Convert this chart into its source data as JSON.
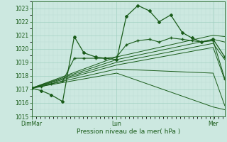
{
  "title": "",
  "xlabel": "Pression niveau de la mer( hPa )",
  "bg_color": "#cce8e0",
  "line_color": "#1a5c1a",
  "grid_major_color": "#99ccbb",
  "grid_minor_color": "#bbddd4",
  "ylim": [
    1015,
    1023.5
  ],
  "yticks": [
    1015,
    1016,
    1017,
    1018,
    1019,
    1020,
    1021,
    1022,
    1023
  ],
  "xtick_labels": [
    "DimMar",
    "Lun",
    "Mer"
  ],
  "xtick_positions": [
    0.0,
    0.44,
    0.94
  ],
  "lines": [
    {
      "x": [
        0.0,
        0.05,
        0.1,
        0.16,
        0.22,
        0.27,
        0.33,
        0.38,
        0.44,
        0.49,
        0.55,
        0.61,
        0.66,
        0.72,
        0.78,
        0.83,
        0.88,
        0.94,
        1.0
      ],
      "y": [
        1017.1,
        1016.9,
        1016.6,
        1016.1,
        1020.9,
        1019.7,
        1019.4,
        1019.3,
        1019.2,
        1022.4,
        1023.2,
        1022.8,
        1022.0,
        1022.5,
        1021.2,
        1020.8,
        1020.5,
        1020.7,
        1019.4
      ],
      "marker": "D",
      "ms": 2.0,
      "lw": 0.9
    },
    {
      "x": [
        0.0,
        0.44,
        0.94,
        1.0
      ],
      "y": [
        1017.1,
        1019.4,
        1021.0,
        1020.9
      ],
      "marker": null,
      "ms": 0,
      "lw": 0.7
    },
    {
      "x": [
        0.0,
        0.44,
        0.94,
        1.0
      ],
      "y": [
        1017.1,
        1019.2,
        1020.7,
        1020.5
      ],
      "marker": null,
      "ms": 0,
      "lw": 0.7
    },
    {
      "x": [
        0.0,
        0.44,
        0.94,
        1.0
      ],
      "y": [
        1017.1,
        1019.0,
        1020.4,
        1019.2
      ],
      "marker": null,
      "ms": 0,
      "lw": 0.7
    },
    {
      "x": [
        0.0,
        0.44,
        0.94,
        1.0
      ],
      "y": [
        1017.1,
        1018.8,
        1020.1,
        1017.7
      ],
      "marker": null,
      "ms": 0,
      "lw": 0.7
    },
    {
      "x": [
        0.0,
        0.44,
        0.94,
        1.0
      ],
      "y": [
        1017.1,
        1018.5,
        1018.2,
        1015.8
      ],
      "marker": null,
      "ms": 0,
      "lw": 0.7
    },
    {
      "x": [
        0.0,
        0.44,
        0.94,
        1.0
      ],
      "y": [
        1017.1,
        1018.2,
        1015.7,
        1015.5
      ],
      "marker": null,
      "ms": 0,
      "lw": 0.7
    },
    {
      "x": [
        0.0,
        0.05,
        0.1,
        0.16,
        0.22,
        0.27,
        0.33,
        0.38,
        0.44,
        0.49,
        0.55,
        0.61,
        0.66,
        0.72,
        0.78,
        0.83,
        0.88,
        0.94,
        1.0
      ],
      "y": [
        1017.1,
        1017.2,
        1017.4,
        1017.6,
        1019.3,
        1019.3,
        1019.3,
        1019.3,
        1019.4,
        1020.3,
        1020.6,
        1020.7,
        1020.5,
        1020.8,
        1020.7,
        1020.6,
        1020.5,
        1020.6,
        1017.8
      ],
      "marker": "+",
      "ms": 2.5,
      "lw": 0.8
    }
  ]
}
